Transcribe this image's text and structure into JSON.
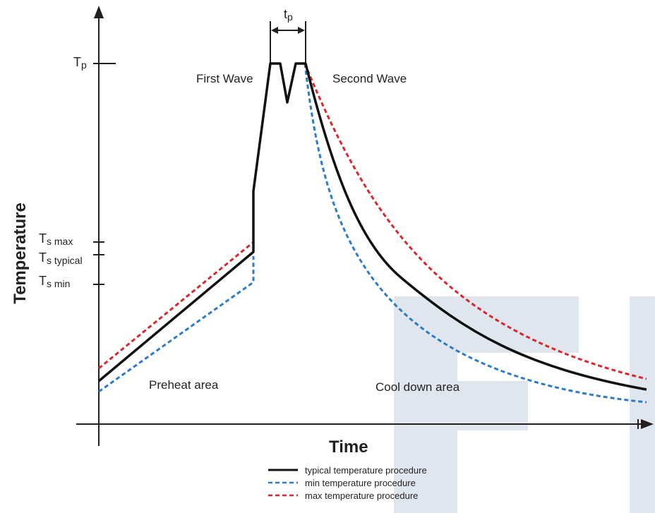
{
  "colors": {
    "ink": "#231f20",
    "typical": "#111111",
    "min": "#2b7bc9",
    "max": "#d9262f",
    "watermark": "#dfe6ee"
  },
  "watermark_icon": "watermark-letters",
  "axes": {
    "y_title": "Temperature",
    "x_title": "Time"
  },
  "ticks": {
    "tp": {
      "main": "T",
      "sub": "p"
    },
    "ts_max": {
      "main": "T",
      "sub": "s max"
    },
    "ts_typical": {
      "main": "T",
      "sub": "s typical"
    },
    "ts_min": {
      "main": "T",
      "sub": "s min"
    }
  },
  "dimension": {
    "main": "t",
    "sub": "p"
  },
  "annotations": {
    "first_wave": "First Wave",
    "second_wave": "Second Wave",
    "preheat": "Preheat area",
    "cooldown": "Cool down area"
  },
  "legend": [
    {
      "label": "typical temperature procedure",
      "style": "solid",
      "color": "#111111"
    },
    {
      "label": "min temperature procedure",
      "style": "dashed",
      "color": "#2b7bc9"
    },
    {
      "label": "max temperature procedure",
      "style": "dashed",
      "color": "#d9262f"
    }
  ]
}
